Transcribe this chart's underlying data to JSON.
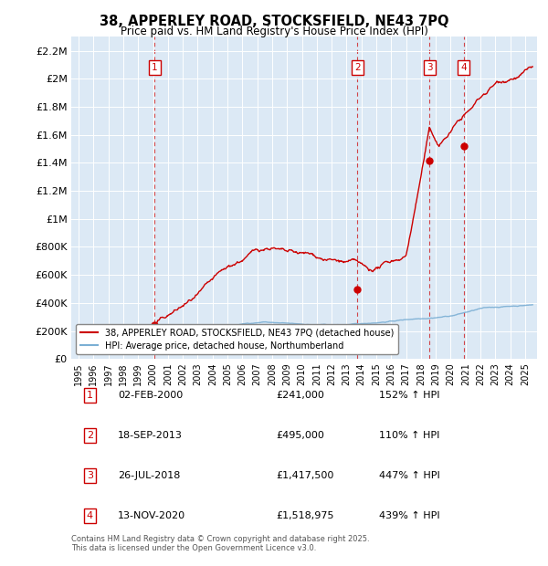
{
  "title": "38, APPERLEY ROAD, STOCKSFIELD, NE43 7PQ",
  "subtitle": "Price paid vs. HM Land Registry's House Price Index (HPI)",
  "plot_bg_color": "#dce9f5",
  "red_line_color": "#cc0000",
  "blue_line_color": "#7bafd4",
  "ylim": [
    0,
    2300000
  ],
  "yticks": [
    0,
    200000,
    400000,
    600000,
    800000,
    1000000,
    1200000,
    1400000,
    1600000,
    1800000,
    2000000,
    2200000
  ],
  "ytick_labels": [
    "£0",
    "£200K",
    "£400K",
    "£600K",
    "£800K",
    "£1M",
    "£1.2M",
    "£1.4M",
    "£1.6M",
    "£1.8M",
    "£2M",
    "£2.2M"
  ],
  "sale_points": [
    {
      "num": 1,
      "year": 2000.09,
      "price": 241000,
      "date": "02-FEB-2000",
      "price_str": "£241,000",
      "hpi_str": "152% ↑ HPI"
    },
    {
      "num": 2,
      "year": 2013.72,
      "price": 495000,
      "date": "18-SEP-2013",
      "price_str": "£495,000",
      "hpi_str": "110% ↑ HPI"
    },
    {
      "num": 3,
      "year": 2018.57,
      "price": 1417500,
      "date": "26-JUL-2018",
      "price_str": "£1,417,500",
      "hpi_str": "447% ↑ HPI"
    },
    {
      "num": 4,
      "year": 2020.87,
      "price": 1518975,
      "date": "13-NOV-2020",
      "price_str": "£1,518,975",
      "hpi_str": "439% ↑ HPI"
    }
  ],
  "legend_red": "38, APPERLEY ROAD, STOCKSFIELD, NE43 7PQ (detached house)",
  "legend_blue": "HPI: Average price, detached house, Northumberland",
  "footer": "Contains HM Land Registry data © Crown copyright and database right 2025.\nThis data is licensed under the Open Government Licence v3.0."
}
